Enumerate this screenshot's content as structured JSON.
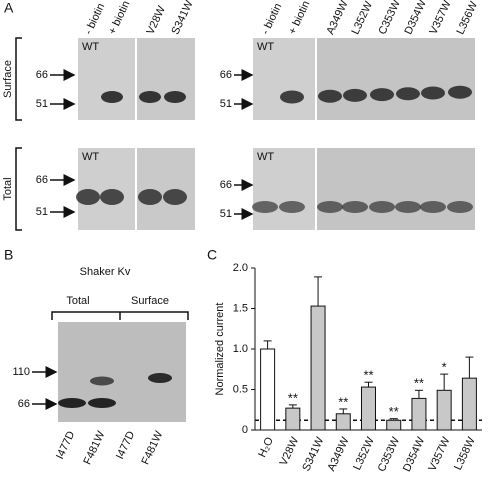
{
  "panel_a": {
    "label": "A",
    "row_labels": [
      "Surface",
      "Total"
    ],
    "markers": [
      "66",
      "51"
    ],
    "wt_label": "WT",
    "left_lanes": [
      "- biotin",
      "+ biotin",
      "V28W",
      "S341W"
    ],
    "right_lanes": [
      "- biotin",
      "+ biotin",
      "A349W",
      "L352W",
      "C353W",
      "D354W",
      "V357W",
      "L356W"
    ]
  },
  "panel_b": {
    "label": "B",
    "title": "Shaker Kv",
    "groups": [
      "Total",
      "Surface"
    ],
    "markers": [
      "110",
      "66"
    ],
    "lanes": [
      "I477D",
      "F481W",
      "I477D",
      "F481W"
    ]
  },
  "panel_c": {
    "label": "C"
  },
  "chart_data": {
    "type": "bar",
    "y_label": "Normalized current",
    "categories": [
      "H₂O",
      "V28W",
      "S341W",
      "A349W",
      "L352W",
      "C353W",
      "D354W",
      "V357W",
      "L358W"
    ],
    "values": [
      1.0,
      0.27,
      1.53,
      0.2,
      0.53,
      0.12,
      0.39,
      0.49,
      0.64
    ],
    "errors": [
      0.1,
      0.04,
      0.36,
      0.06,
      0.06,
      0.02,
      0.1,
      0.2,
      0.26
    ],
    "colors": [
      "#ffffff",
      "#c8c8c8",
      "#c8c8c8",
      "#c8c8c8",
      "#c8c8c8",
      "#c8c8c8",
      "#c8c8c8",
      "#c8c8c8",
      "#c8c8c8"
    ],
    "significance": [
      null,
      "**",
      null,
      "**",
      "**",
      "**",
      "**",
      "*",
      null
    ],
    "reference_line": 0.12,
    "ylim": [
      0,
      2.0
    ],
    "yticks": [
      0,
      0.5,
      {
        "value": 1.0,
        "label": "1.0"
      },
      1.5,
      {
        "value": 2.0,
        "label": "2.0"
      }
    ]
  }
}
